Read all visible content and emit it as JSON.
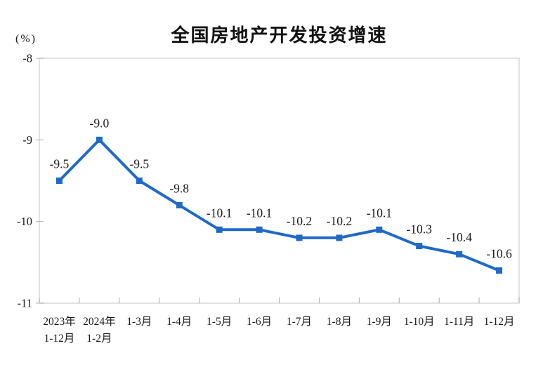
{
  "page": {
    "background": "#ffffff"
  },
  "chart_data": {
    "type": "line",
    "title": "全国房地产开发投资增速",
    "unit_label": "(%)",
    "categories": [
      "2023年\n1-12月",
      "2024年\n1-2月",
      "1-3月",
      "1-4月",
      "1-5月",
      "1-6月",
      "1-7月",
      "1-8月",
      "1-9月",
      "1-10月",
      "1-11月",
      "1-12月"
    ],
    "values": [
      -9.5,
      -9.0,
      -9.5,
      -9.8,
      -10.1,
      -10.1,
      -10.2,
      -10.2,
      -10.1,
      -10.3,
      -10.4,
      -10.6
    ],
    "point_labels": [
      "-9.5",
      "-9.0",
      "-9.5",
      "-9.8",
      "-10.1",
      "-10.1",
      "-10.2",
      "-10.2",
      "-10.1",
      "-10.3",
      "-10.4",
      "-10.6"
    ],
    "y_tick_labels": [
      "-8",
      "-9",
      "-10",
      "-11"
    ],
    "y_tick_values": [
      -8,
      -9,
      -10,
      -11
    ],
    "ylim": [
      -11,
      -8
    ],
    "grid": false,
    "legend": "none",
    "marker": "square",
    "colors": {
      "line": "#2069C5",
      "marker": "#2069C5",
      "axis": "#ADADAD",
      "border": "#D9D9D9",
      "label_text": "#1A1A1A",
      "title_text": "#111111"
    }
  }
}
